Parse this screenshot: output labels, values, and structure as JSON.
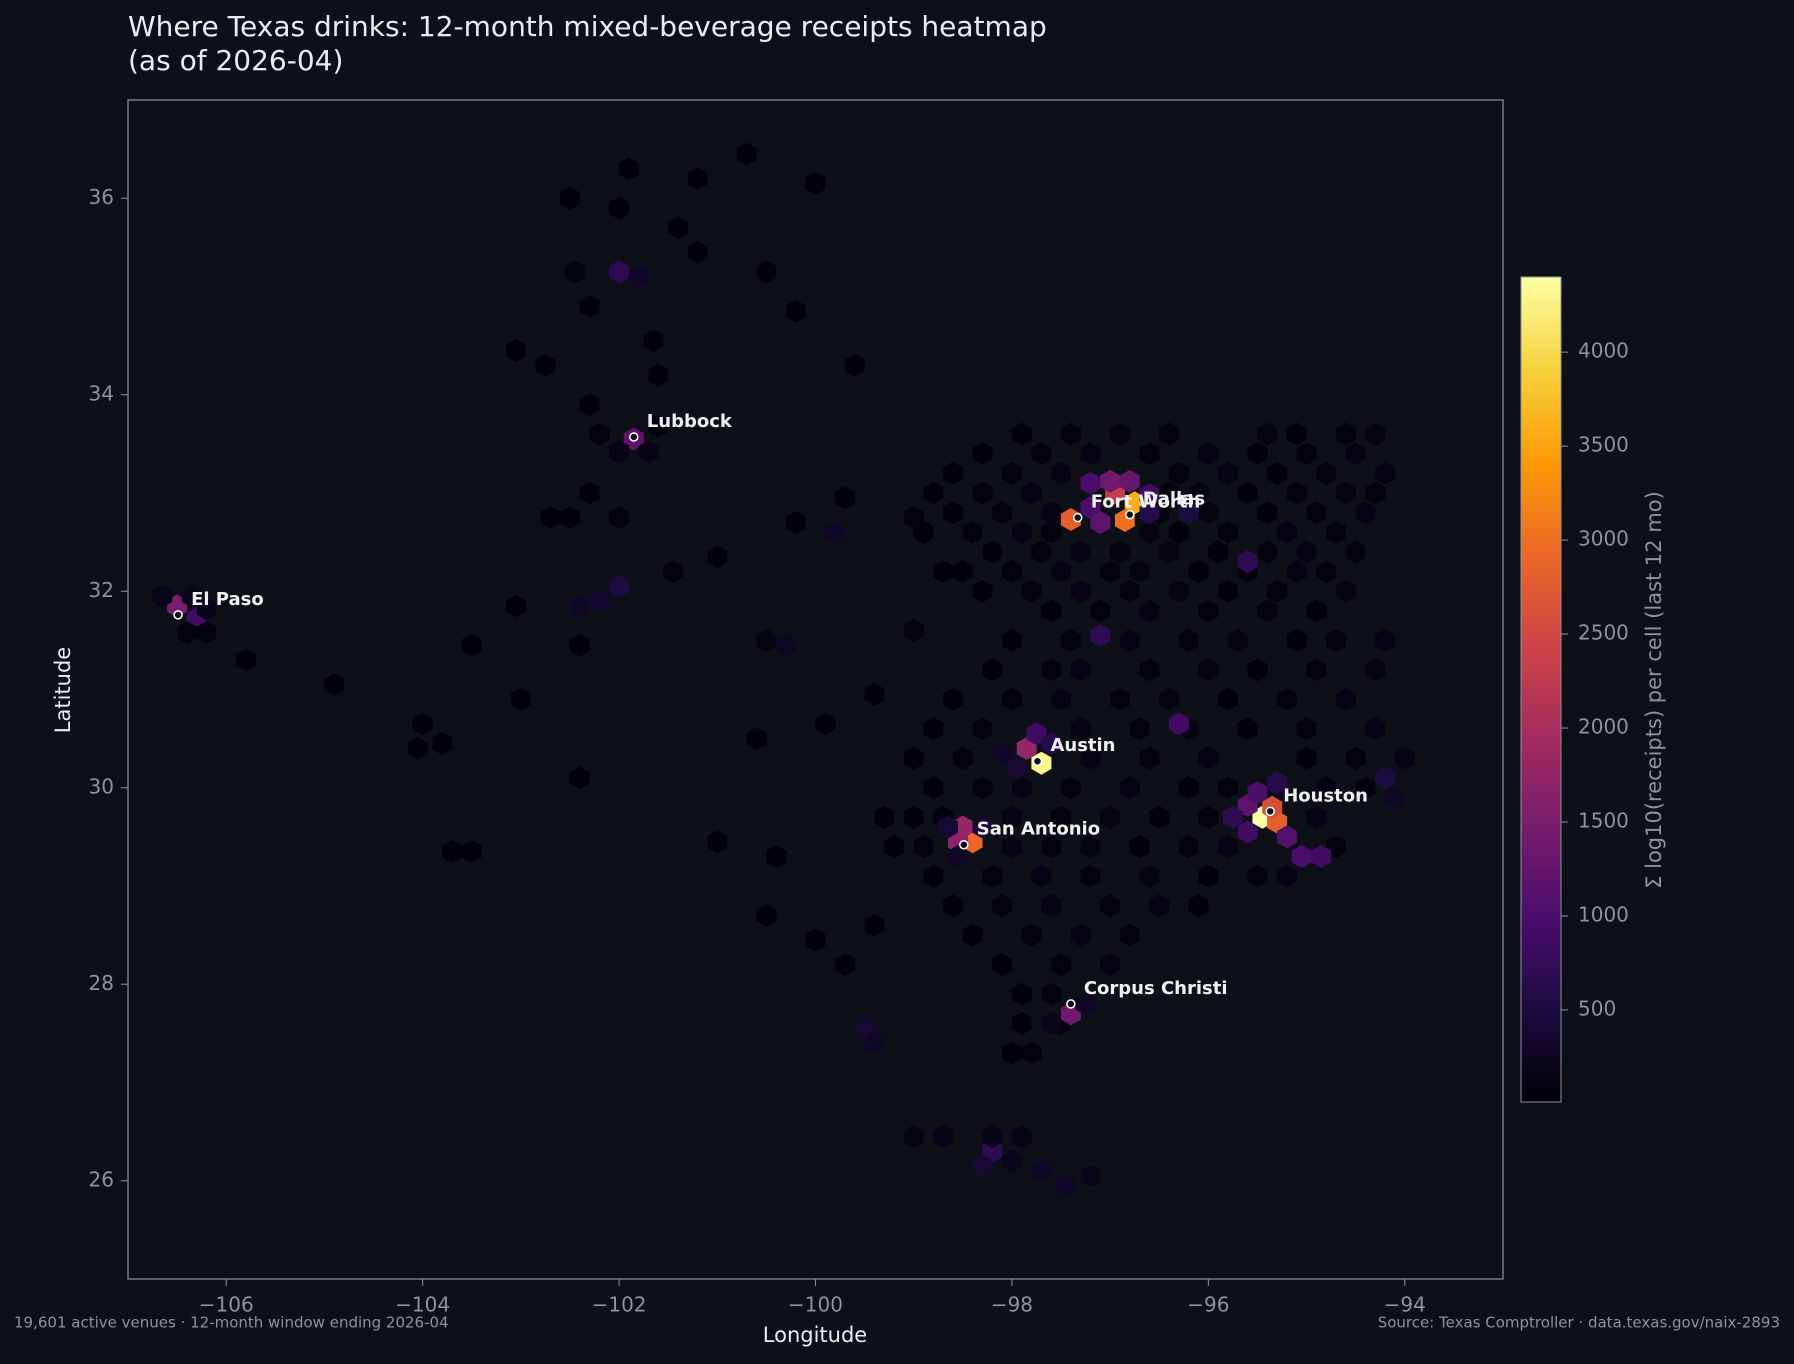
{
  "chart_data": {
    "type": "hexbin",
    "title": "Where Texas drinks: 12-month mixed-beverage receipts heatmap\n(as of 2026-04)",
    "x_label": "Longitude",
    "y_label": "Latitude",
    "colorbar_label": "Σ log10(receipts) per cell (last 12 mo)",
    "footer_left": "19,601 active venues · 12-month window ending 2026-04",
    "footer_right": "Source: Texas Comptroller · data.texas.gov/naix-2893",
    "xlim": [
      -107,
      -93
    ],
    "ylim": [
      25,
      37
    ],
    "xticks": [
      {
        "value": -106,
        "label": "−106"
      },
      {
        "value": -104,
        "label": "−104"
      },
      {
        "value": -102,
        "label": "−102"
      },
      {
        "value": -100,
        "label": "−100"
      },
      {
        "value": -98,
        "label": "−98"
      },
      {
        "value": -96,
        "label": "−96"
      },
      {
        "value": -94,
        "label": "−94"
      }
    ],
    "yticks": [
      26,
      28,
      30,
      32,
      34,
      36
    ],
    "clim": [
      10,
      4400
    ],
    "cticks": [
      500,
      1000,
      1500,
      2000,
      2500,
      3000,
      3500,
      4000
    ],
    "colormap": [
      "#000004",
      "#1b0c41",
      "#4a0c6b",
      "#781c6d",
      "#a52c60",
      "#cf4446",
      "#ed6925",
      "#fb9b06",
      "#f7d13d",
      "#fcffa4"
    ],
    "marker_color": "#ffffff",
    "x": [
      -97.9,
      -97.4,
      -96.9,
      -96.4,
      -95.4,
      -95.1,
      -94.6,
      -94.3,
      -98.3,
      -97.7,
      -97.2,
      -96.6,
      -96.0,
      -95.5,
      -95.0,
      -94.5,
      -98.6,
      -98.0,
      -97.5,
      -96.3,
      -95.8,
      -95.3,
      -94.8,
      -94.2,
      -98.8,
      -98.3,
      -97.8,
      -96.4,
      -96.1,
      -95.6,
      -95.1,
      -94.6,
      -94.3,
      -98.6,
      -98.1,
      -97.6,
      -96.5,
      -96.0,
      -95.4,
      -94.9,
      -94.4,
      -98.9,
      -98.4,
      -97.9,
      -97.6,
      -96.6,
      -96.3,
      -95.8,
      -95.2,
      -94.7,
      -98.2,
      -97.7,
      -97.3,
      -96.9,
      -96.4,
      -95.9,
      -95.4,
      -95.0,
      -94.5,
      -98.5,
      -98.0,
      -97.5,
      -97.0,
      -96.7,
      -96.1,
      -95.6,
      -95.1,
      -94.8,
      -98.3,
      -97.8,
      -97.3,
      -96.8,
      -96.3,
      -95.8,
      -95.3,
      -94.6,
      -97.6,
      -97.1,
      -96.6,
      -96.0,
      -95.4,
      -94.9,
      -98.0,
      -97.4,
      -96.8,
      -96.2,
      -95.7,
      -95.1,
      -94.7,
      -94.2,
      -98.2,
      -97.6,
      -97.3,
      -96.6,
      -96.0,
      -95.5,
      -94.9,
      -94.3,
      -98.6,
      -98.0,
      -97.5,
      -96.9,
      -96.4,
      -95.8,
      -95.2,
      -94.6,
      -98.8,
      -98.3,
      -97.3,
      -96.7,
      -96.2,
      -95.6,
      -95.0,
      -94.3,
      -99.0,
      -98.5,
      -97.2,
      -96.6,
      -96.0,
      -95.0,
      -94.5,
      -94.0,
      -98.8,
      -98.3,
      -97.9,
      -97.4,
      -96.8,
      -96.2,
      -95.8,
      -94.8,
      -94.4,
      -99.0,
      -98.7,
      -98.0,
      -97.5,
      -97.0,
      -96.5,
      -96.0,
      -94.9,
      -99.2,
      -98.9,
      -98.0,
      -97.6,
      -97.2,
      -96.7,
      -96.2,
      -95.8,
      -94.7,
      -98.8,
      -98.2,
      -97.7,
      -97.2,
      -96.6,
      -96.0,
      -95.5,
      -95.2,
      -98.6,
      -98.1,
      -97.6,
      -97.0,
      -96.5,
      -96.1,
      -98.4,
      -97.8,
      -97.3,
      -96.8,
      -98.1,
      -97.5,
      -97.0,
      -97.9,
      -97.6,
      -97.9,
      -97.5,
      -98.0,
      -97.8,
      -101.9,
      -102.5,
      -101.2,
      -100.7,
      -100.0,
      -101.4,
      -102.0,
      -102.45,
      -102.0,
      -101.8,
      -101.2,
      -100.5,
      -101.65,
      -102.3,
      -100.2,
      -102.75,
      -103.05,
      -101.6,
      -102.3,
      -99.6,
      -101.85,
      -102.0,
      -101.7,
      -102.2,
      -101.6,
      -102.3,
      -102.7,
      -102.5,
      -102.0,
      -101.45,
      -102.0,
      -102.2,
      -102.4,
      -102.4,
      -103.05,
      -103.5,
      -104.9,
      -103.0,
      -104.0,
      -103.8,
      -104.05,
      -103.7,
      -103.5,
      -102.4,
      -100.5,
      -100.3,
      -106.5,
      -106.3,
      -106.65,
      -106.35,
      -106.2,
      -106.4,
      -106.2,
      -105.8,
      -101.0,
      -100.2,
      -99.8,
      -99.7,
      -99.0,
      -98.7,
      -99.0,
      -99.4,
      -99.9,
      -100.6,
      -100.4,
      -101.0,
      -99.3,
      -99.4,
      -100.0,
      -99.7,
      -100.5,
      -96.75,
      -96.85,
      -96.95,
      -97.0,
      -96.8,
      -97.2,
      -97.4,
      -97.1,
      -96.6,
      -97.2,
      -96.6,
      -96.2,
      -97.1,
      -96.3,
      -95.45,
      -95.3,
      -95.35,
      -95.6,
      -95.2,
      -95.6,
      -95.05,
      -95.5,
      -95.75,
      -95.3,
      -94.2,
      -94.1,
      -97.7,
      -97.85,
      -97.75,
      -97.6,
      -97.95,
      -98.1,
      -98.4,
      -98.55,
      -98.5,
      -98.65,
      -98.3,
      -98.55,
      -97.4,
      -97.25,
      -97.6,
      -98.2,
      -98.3,
      -97.7,
      -97.45,
      -98.0,
      -97.2,
      -98.7,
      -99.0,
      -97.9,
      -98.2,
      -99.5,
      -99.4,
      -95.6,
      -94.85
    ],
    "y": [
      33.6,
      33.6,
      33.6,
      33.6,
      33.6,
      33.6,
      33.6,
      33.6,
      33.4,
      33.4,
      33.4,
      33.4,
      33.4,
      33.4,
      33.4,
      33.4,
      33.2,
      33.2,
      33.2,
      33.2,
      33.2,
      33.2,
      33.2,
      33.2,
      33.0,
      33.0,
      33.0,
      33.0,
      33.0,
      33.0,
      33.0,
      33.0,
      33.0,
      32.8,
      32.8,
      32.8,
      32.8,
      32.8,
      32.8,
      32.8,
      32.8,
      32.6,
      32.6,
      32.6,
      32.6,
      32.6,
      32.6,
      32.6,
      32.6,
      32.6,
      32.4,
      32.4,
      32.4,
      32.4,
      32.4,
      32.4,
      32.4,
      32.4,
      32.4,
      32.2,
      32.2,
      32.2,
      32.2,
      32.2,
      32.2,
      32.2,
      32.2,
      32.2,
      32.0,
      32.0,
      32.0,
      32.0,
      32.0,
      32.0,
      32.0,
      32.0,
      31.8,
      31.8,
      31.8,
      31.8,
      31.8,
      31.8,
      31.5,
      31.5,
      31.5,
      31.5,
      31.5,
      31.5,
      31.5,
      31.5,
      31.2,
      31.2,
      31.2,
      31.2,
      31.2,
      31.2,
      31.2,
      31.2,
      30.9,
      30.9,
      30.9,
      30.9,
      30.9,
      30.9,
      30.9,
      30.9,
      30.6,
      30.6,
      30.6,
      30.6,
      30.6,
      30.6,
      30.6,
      30.6,
      30.3,
      30.3,
      30.3,
      30.3,
      30.3,
      30.3,
      30.3,
      30.3,
      30.0,
      30.0,
      30.0,
      30.0,
      30.0,
      30.0,
      30.0,
      30.0,
      30.0,
      29.7,
      29.7,
      29.7,
      29.7,
      29.7,
      29.7,
      29.7,
      29.7,
      29.4,
      29.4,
      29.4,
      29.4,
      29.4,
      29.4,
      29.4,
      29.4,
      29.4,
      29.1,
      29.1,
      29.1,
      29.1,
      29.1,
      29.1,
      29.1,
      29.1,
      28.8,
      28.8,
      28.8,
      28.8,
      28.8,
      28.8,
      28.5,
      28.5,
      28.5,
      28.5,
      28.2,
      28.2,
      28.2,
      27.9,
      27.9,
      27.6,
      27.6,
      27.3,
      27.3,
      36.3,
      36.0,
      36.2,
      36.45,
      36.15,
      35.7,
      35.9,
      35.25,
      35.25,
      35.2,
      35.45,
      35.25,
      34.55,
      34.9,
      34.85,
      34.3,
      34.45,
      34.2,
      33.9,
      34.3,
      33.55,
      33.42,
      33.42,
      33.6,
      33.68,
      33.0,
      32.75,
      32.75,
      32.75,
      32.2,
      32.05,
      31.9,
      31.85,
      31.45,
      31.85,
      31.45,
      31.05,
      30.9,
      30.65,
      30.45,
      30.4,
      29.35,
      29.35,
      30.1,
      31.5,
      31.45,
      31.85,
      31.72,
      31.95,
      31.95,
      31.82,
      31.58,
      31.58,
      31.3,
      32.35,
      32.7,
      32.6,
      32.95,
      32.75,
      32.2,
      31.6,
      30.95,
      30.65,
      30.5,
      29.3,
      29.45,
      29.7,
      28.6,
      28.45,
      28.2,
      28.7,
      32.9,
      32.72,
      33.0,
      33.12,
      33.12,
      32.85,
      32.73,
      32.7,
      32.98,
      33.1,
      32.8,
      32.8,
      31.55,
      30.65,
      29.7,
      29.65,
      29.8,
      29.82,
      29.5,
      29.55,
      29.3,
      29.95,
      29.7,
      30.05,
      30.1,
      29.9,
      30.25,
      30.4,
      30.55,
      30.45,
      30.2,
      30.35,
      29.45,
      29.45,
      29.6,
      29.6,
      29.6,
      29.3,
      27.7,
      27.8,
      27.6,
      26.3,
      26.15,
      26.1,
      25.95,
      26.2,
      26.05,
      26.45,
      26.45,
      26.45,
      26.45,
      27.55,
      27.4,
      32.3,
      29.3
    ],
    "values": [
      60,
      100,
      140,
      80,
      120,
      60,
      100,
      140,
      60,
      100,
      140,
      80,
      120,
      60,
      100,
      140,
      60,
      100,
      140,
      80,
      120,
      60,
      100,
      140,
      60,
      100,
      140,
      80,
      120,
      60,
      100,
      140,
      80,
      60,
      100,
      140,
      80,
      120,
      60,
      100,
      140,
      60,
      100,
      140,
      80,
      120,
      60,
      100,
      140,
      80,
      60,
      100,
      140,
      80,
      120,
      60,
      100,
      140,
      80,
      60,
      100,
      140,
      80,
      120,
      60,
      100,
      140,
      80,
      60,
      100,
      140,
      80,
      120,
      60,
      100,
      140,
      60,
      100,
      140,
      80,
      120,
      60,
      60,
      100,
      140,
      80,
      120,
      60,
      100,
      140,
      60,
      100,
      140,
      80,
      120,
      60,
      100,
      140,
      60,
      100,
      140,
      80,
      120,
      60,
      100,
      140,
      60,
      100,
      140,
      80,
      120,
      60,
      100,
      140,
      60,
      100,
      140,
      80,
      120,
      60,
      100,
      140,
      60,
      100,
      140,
      80,
      120,
      60,
      100,
      140,
      80,
      60,
      100,
      140,
      80,
      120,
      60,
      100,
      140,
      60,
      100,
      140,
      80,
      120,
      60,
      100,
      140,
      80,
      60,
      100,
      140,
      80,
      120,
      60,
      100,
      140,
      60,
      100,
      140,
      80,
      120,
      60,
      60,
      100,
      140,
      80,
      60,
      100,
      140,
      60,
      100,
      60,
      100,
      60,
      100,
      60,
      60,
      60,
      60,
      60,
      60,
      60,
      80,
      700,
      300,
      60,
      60,
      60,
      60,
      60,
      60,
      60,
      60,
      60,
      60,
      1200,
      150,
      150,
      100,
      100,
      60,
      60,
      60,
      80,
      80,
      500,
      350,
      300,
      60,
      60,
      60,
      60,
      60,
      60,
      60,
      60,
      60,
      60,
      60,
      120,
      250,
      1500,
      900,
      200,
      200,
      150,
      100,
      100,
      60,
      60,
      60,
      300,
      60,
      80,
      60,
      80,
      60,
      60,
      60,
      60,
      60,
      60,
      60,
      60,
      60,
      60,
      3600,
      3000,
      2300,
      1400,
      1300,
      1000,
      2800,
      1200,
      900,
      1000,
      600,
      500,
      700,
      900,
      4400,
      2800,
      2600,
      1200,
      1100,
      900,
      1000,
      1000,
      700,
      600,
      500,
      300,
      4300,
      1800,
      900,
      600,
      400,
      300,
      2900,
      1700,
      1800,
      400,
      400,
      300,
      1400,
      300,
      200,
      700,
      400,
      300,
      300,
      200,
      200,
      150,
      120,
      150,
      150,
      400,
      300,
      700,
      900
    ],
    "cities": [
      {
        "name": "Lubbock",
        "lon": -101.85,
        "lat": 33.57
      },
      {
        "name": "El Paso",
        "lon": -106.49,
        "lat": 31.76
      },
      {
        "name": "Fort Worth",
        "lon": -97.33,
        "lat": 32.75
      },
      {
        "name": "Dallas",
        "lon": -96.8,
        "lat": 32.78
      },
      {
        "name": "Austin",
        "lon": -97.74,
        "lat": 30.27
      },
      {
        "name": "Houston",
        "lon": -95.37,
        "lat": 29.76
      },
      {
        "name": "San Antonio",
        "lon": -98.49,
        "lat": 29.42
      },
      {
        "name": "Corpus Christi",
        "lon": -97.4,
        "lat": 27.8
      }
    ]
  }
}
